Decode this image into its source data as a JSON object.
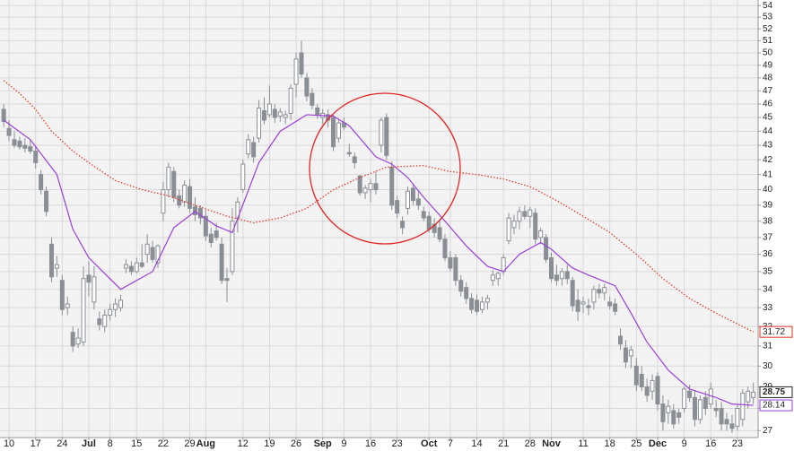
{
  "chart_data": {
    "type": "candlestick",
    "log": true,
    "grid": true,
    "ylim": [
      26.7,
      54.5
    ],
    "yticks": [
      27,
      28,
      29,
      30,
      31,
      32,
      33,
      34,
      35,
      36,
      37,
      38,
      39,
      40,
      41,
      42,
      43,
      44,
      45,
      46,
      47,
      48,
      49,
      50,
      51,
      52,
      53,
      54
    ],
    "xlim": [
      -0.7,
      141.9
    ],
    "xticks": [
      {
        "value": 1,
        "label": "10"
      },
      {
        "value": 6,
        "label": "17"
      },
      {
        "value": 11,
        "label": "24"
      },
      {
        "value": 16,
        "label": "Jul"
      },
      {
        "value": 20,
        "label": "8"
      },
      {
        "value": 25,
        "label": "15"
      },
      {
        "value": 30,
        "label": "22"
      },
      {
        "value": 35,
        "label": "29"
      },
      {
        "value": 38,
        "label": "Aug"
      },
      {
        "value": 45,
        "label": "12"
      },
      {
        "value": 50,
        "label": "19"
      },
      {
        "value": 55,
        "label": "26"
      },
      {
        "value": 60,
        "label": "Sep"
      },
      {
        "value": 64,
        "label": "9"
      },
      {
        "value": 69,
        "label": "16"
      },
      {
        "value": 74,
        "label": "23"
      },
      {
        "value": 80,
        "label": "Oct"
      },
      {
        "value": 84,
        "label": "7"
      },
      {
        "value": 89,
        "label": "14"
      },
      {
        "value": 94,
        "label": "21"
      },
      {
        "value": 99,
        "label": "28"
      },
      {
        "value": 103,
        "label": "Nov"
      },
      {
        "value": 109,
        "label": "11"
      },
      {
        "value": 114,
        "label": "18"
      },
      {
        "value": 119,
        "label": "25"
      },
      {
        "value": 123,
        "label": "Dec"
      },
      {
        "value": 128,
        "label": "9"
      },
      {
        "value": 133,
        "label": "16"
      },
      {
        "value": 138,
        "label": "23"
      }
    ],
    "candles": {
      "color": "#8a8f95",
      "last_value": 28.75,
      "open": [
        45.6,
        44.2,
        43.4,
        43.3,
        43.0,
        42.9,
        42.6,
        41.0,
        39.9,
        36.6,
        35.2,
        34.5,
        33.0,
        31.7,
        31.1,
        31.2,
        34.8,
        33.3,
        32.4,
        32.0,
        32.6,
        32.9,
        33.0,
        35.2,
        35.3,
        35.0,
        35.5,
        36.0,
        36.4,
        35.5,
        38.5,
        40.0,
        41.2,
        39.6,
        39.2,
        40.2,
        38.9,
        38.8,
        38.3,
        37.2,
        37.4,
        36.6,
        34.6,
        35.0,
        38.2,
        40.0,
        42.4,
        43.2,
        43.5,
        45.5,
        45.2,
        45.6,
        45.1,
        45.0,
        45.3,
        47.5,
        50.0,
        48.0,
        46.8,
        45.7,
        45.0,
        45.2,
        45.0,
        43.5,
        44.6,
        42.5,
        42.2,
        40.9,
        39.8,
        40.0,
        40.4,
        43.0,
        45.0,
        41.5,
        39.3,
        38.0,
        38.8,
        40.1,
        39.4,
        38.6,
        38.3,
        37.8,
        37.6,
        36.9,
        35.8,
        35.8,
        34.5,
        34.1,
        33.5,
        33.4,
        32.9,
        33.3,
        34.5,
        34.6,
        35.0,
        36.8,
        37.6,
        38.0,
        38.6,
        38.3,
        38.5,
        37.0,
        37.0,
        35.8,
        34.8,
        34.6,
        35.0,
        34.5,
        33.4,
        33.2,
        33.1,
        33.3,
        34.0,
        33.8,
        33.3,
        33.2,
        31.5,
        30.9,
        30.5,
        30.0,
        29.6,
        29.0,
        28.8,
        29.5,
        28.2,
        27.8,
        27.9,
        27.8,
        28.0,
        28.8,
        28.5,
        27.5,
        28.5,
        28.2,
        28.0,
        28.0,
        27.5,
        27.3,
        27.2,
        27.5,
        28.3,
        28.5
      ],
      "high": [
        46.0,
        44.8,
        44.0,
        43.6,
        43.5,
        43.4,
        43.0,
        41.3,
        40.2,
        37.0,
        35.9,
        34.8,
        33.6,
        32.0,
        31.9,
        35.3,
        35.6,
        35.3,
        32.8,
        32.9,
        33.2,
        33.5,
        33.7,
        35.7,
        35.6,
        35.8,
        36.6,
        37.2,
        36.8,
        36.6,
        40.5,
        41.8,
        41.5,
        40.0,
        40.6,
        40.7,
        39.5,
        39.0,
        38.7,
        37.6,
        37.9,
        37.0,
        35.2,
        38.8,
        39.5,
        42.0,
        43.8,
        43.6,
        46.3,
        46.5,
        47.4,
        46.0,
        45.7,
        45.5,
        47.5,
        50.0,
        51.0,
        48.4,
        47.2,
        46.0,
        45.6,
        45.6,
        45.2,
        44.8,
        45.0,
        43.1,
        42.5,
        41.0,
        40.3,
        40.7,
        41.2,
        45.0,
        45.3,
        41.9,
        39.6,
        38.3,
        40.2,
        40.3,
        39.9,
        38.9,
        38.6,
        38.2,
        38.0,
        37.2,
        36.2,
        36.0,
        34.8,
        34.4,
        33.8,
        33.7,
        33.6,
        33.7,
        35.1,
        35.0,
        36.0,
        38.5,
        38.4,
        38.9,
        39.0,
        38.9,
        38.8,
        37.6,
        37.2,
        36.1,
        35.4,
        35.2,
        35.4,
        34.7,
        34.0,
        33.6,
        33.5,
        34.2,
        34.3,
        34.3,
        33.6,
        33.5,
        31.9,
        31.3,
        31.0,
        30.4,
        30.0,
        29.4,
        29.6,
        29.7,
        28.6,
        28.4,
        28.2,
        28.0,
        29.0,
        29.1,
        28.8,
        28.6,
        28.8,
        29.2,
        28.4,
        28.3,
        27.8,
        27.7,
        28.2,
        28.9,
        29.0,
        29.2
      ],
      "low": [
        44.3,
        43.3,
        42.8,
        42.7,
        42.5,
        42.4,
        41.4,
        39.7,
        38.3,
        34.4,
        34.7,
        32.6,
        32.6,
        30.7,
        30.9,
        31.0,
        33.6,
        32.9,
        31.8,
        31.7,
        32.3,
        32.5,
        32.8,
        34.9,
        34.8,
        34.9,
        35.2,
        35.5,
        35.5,
        35.2,
        38.0,
        39.5,
        39.2,
        38.8,
        38.9,
        38.5,
        38.0,
        37.8,
        36.8,
        36.4,
        36.8,
        34.3,
        33.3,
        34.8,
        37.3,
        39.8,
        42.1,
        41.8,
        43.2,
        44.5,
        45.0,
        44.6,
        44.7,
        44.5,
        44.8,
        46.5,
        48.0,
        46.2,
        45.6,
        44.9,
        44.5,
        44.3,
        42.6,
        43.2,
        44.1,
        42.2,
        41.4,
        39.6,
        39.4,
        39.2,
        39.7,
        42.5,
        42.0,
        38.7,
        38.2,
        37.2,
        38.4,
        39.0,
        38.7,
        38.0,
        37.3,
        37.0,
        36.7,
        35.6,
        35.0,
        34.2,
        33.6,
        33.2,
        32.7,
        32.6,
        32.7,
        32.9,
        34.2,
        34.2,
        34.8,
        36.6,
        37.2,
        37.5,
        38.1,
        37.6,
        36.6,
        36.6,
        35.5,
        34.4,
        34.2,
        34.2,
        34.3,
        32.8,
        32.3,
        32.7,
        32.6,
        32.9,
        33.5,
        33.4,
        32.9,
        32.6,
        30.8,
        29.9,
        29.9,
        28.8,
        28.8,
        28.3,
        28.4,
        27.9,
        27.0,
        27.3,
        27.1,
        27.3,
        27.8,
        28.3,
        27.2,
        27.3,
        27.7,
        28.0,
        27.6,
        27.0,
        27.0,
        26.9,
        27.0,
        27.2,
        28.0,
        28.2
      ],
      "close": [
        44.7,
        43.7,
        43.0,
        42.9,
        42.8,
        42.6,
        41.8,
        40.0,
        38.6,
        34.7,
        35.4,
        32.9,
        33.2,
        31.0,
        31.4,
        34.6,
        34.4,
        34.7,
        32.1,
        32.6,
        32.9,
        33.2,
        33.4,
        35.4,
        35.0,
        35.5,
        35.3,
        36.6,
        35.7,
        36.5,
        40.0,
        41.5,
        39.5,
        39.0,
        40.3,
        38.8,
        38.4,
        38.2,
        37.1,
        36.7,
        37.0,
        34.5,
        34.5,
        38.0,
        39.2,
        41.7,
        43.4,
        42.2,
        45.7,
        44.8,
        46.0,
        45.0,
        45.4,
        45.2,
        47.2,
        49.5,
        48.3,
        46.6,
        45.9,
        45.2,
        45.3,
        44.8,
        42.9,
        44.6,
        44.3,
        42.4,
        41.8,
        39.8,
        40.1,
        40.4,
        40.0,
        44.8,
        42.3,
        39.0,
        38.5,
        37.6,
        39.9,
        39.3,
        39.0,
        38.2,
        37.5,
        37.3,
        36.9,
        35.8,
        35.2,
        34.5,
        33.9,
        33.5,
        32.9,
        32.8,
        33.3,
        33.5,
        34.8,
        34.9,
        35.8,
        38.2,
        38.0,
        38.6,
        38.3,
        38.7,
        36.9,
        37.4,
        35.7,
        34.6,
        34.5,
        35.0,
        34.6,
        33.1,
        32.8,
        33.3,
        33.0,
        34.0,
        33.8,
        34.1,
        33.1,
        32.8,
        31.1,
        30.2,
        30.8,
        29.1,
        29.0,
        28.6,
        29.3,
        28.2,
        27.4,
        28.1,
        27.3,
        27.6,
        28.9,
        28.5,
        27.5,
        28.4,
        28.0,
        28.9,
        27.9,
        27.3,
        27.3,
        27.1,
        28.0,
        28.7,
        28.8,
        28.75
      ]
    },
    "lines": [
      {
        "color": "#9a3fd6",
        "style": "solid",
        "last_value": 28.14,
        "x": [
          0,
          5,
          10,
          13,
          16,
          22,
          28,
          32,
          36,
          40,
          43,
          48,
          52,
          57,
          62,
          65,
          70,
          73,
          76,
          79,
          83,
          87,
          91,
          94,
          97,
          101,
          103,
          107,
          110,
          115,
          118,
          121,
          125,
          129,
          134,
          137,
          141
        ],
        "values": [
          44.8,
          43.4,
          41.0,
          37.5,
          35.8,
          34.0,
          35.0,
          37.6,
          38.6,
          37.7,
          37.3,
          41.8,
          44.0,
          45.2,
          45.1,
          44.4,
          42.2,
          41.7,
          40.8,
          39.5,
          38.0,
          36.5,
          35.3,
          35.0,
          36.0,
          36.7,
          36.3,
          35.2,
          34.8,
          34.2,
          32.7,
          31.2,
          29.8,
          28.9,
          28.5,
          28.2,
          28.14
        ]
      },
      {
        "color": "#e0301e",
        "style": "dotted",
        "last_value": 31.72,
        "x": [
          0,
          3,
          6,
          9,
          13,
          16,
          21,
          26,
          31,
          36,
          42,
          47,
          52,
          57,
          62,
          67,
          72,
          79,
          84,
          89,
          94,
          99,
          104,
          109,
          114,
          119,
          124,
          129,
          134,
          141
        ],
        "values": [
          47.8,
          46.8,
          45.6,
          44.0,
          42.6,
          41.8,
          40.6,
          40.0,
          39.6,
          39.0,
          38.3,
          37.9,
          38.2,
          38.8,
          40.0,
          40.8,
          41.5,
          41.6,
          41.2,
          41.0,
          40.7,
          40.2,
          39.3,
          38.3,
          37.3,
          36.0,
          34.6,
          33.5,
          32.7,
          31.72
        ]
      }
    ]
  }
}
